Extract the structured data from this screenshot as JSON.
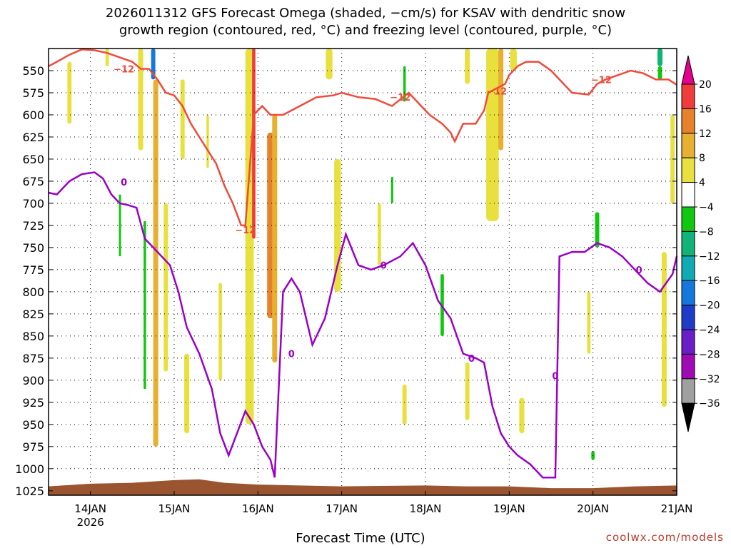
{
  "header": {
    "title_line1": "2026011312 GFS Forecast Omega (shaded, −cm/s) for KSAV with dendritic snow",
    "title_line2": "growth region (contoured, red, °C) and freezing level (contoured, purple, °C)"
  },
  "footer": {
    "xlabel": "Forecast Time (UTC)",
    "credit": "coolwx.com/models"
  },
  "colors": {
    "dgz_contour": "#f04a3a",
    "freezing_contour": "#9a00c8",
    "terrain": "#9a5530"
  },
  "chart_data": {
    "type": "heatmap",
    "y_ticks": [
      "550",
      "575",
      "600",
      "625",
      "650",
      "675",
      "700",
      "725",
      "750",
      "775",
      "800",
      "825",
      "850",
      "875",
      "900",
      "925",
      "950",
      "975",
      "1000",
      "1025"
    ],
    "y_range_hpa": [
      525,
      1030
    ],
    "x_ticks": [
      {
        "label": "14JAN",
        "sub": "2026",
        "day": 14
      },
      {
        "label": "15JAN",
        "sub": "",
        "day": 15
      },
      {
        "label": "16JAN",
        "sub": "",
        "day": 16
      },
      {
        "label": "17JAN",
        "sub": "",
        "day": 17
      },
      {
        "label": "18JAN",
        "sub": "",
        "day": 18
      },
      {
        "label": "19JAN",
        "sub": "",
        "day": 19
      },
      {
        "label": "20JAN",
        "sub": "",
        "day": 20
      },
      {
        "label": "21JAN",
        "sub": "",
        "day": 21
      }
    ],
    "x_range_day": [
      13.5,
      21.0
    ],
    "colorbar": {
      "labels": [
        "20",
        "16",
        "12",
        "8",
        "4",
        "−4",
        "−8",
        "−12",
        "−16",
        "−20",
        "−24",
        "−28",
        "−32",
        "−36"
      ],
      "colors": [
        "#e4008c",
        "#f03c3c",
        "#e8822a",
        "#e8b030",
        "#e8e03c",
        "#ffffff",
        "#10c810",
        "#10b478",
        "#10aab4",
        "#1478dc",
        "#1e3cc8",
        "#6a1ec8",
        "#a00ab4",
        "#a0a0a0",
        "#000000"
      ]
    },
    "contour_labels": {
      "dgz": "−12",
      "freezing": "0"
    },
    "dgz_line": [
      [
        13.5,
        545
      ],
      [
        13.6,
        540
      ],
      [
        13.75,
        532
      ],
      [
        13.9,
        526
      ],
      [
        14.05,
        527
      ],
      [
        14.2,
        530
      ],
      [
        14.35,
        535
      ],
      [
        14.5,
        540
      ],
      [
        14.6,
        548
      ],
      [
        14.7,
        548
      ],
      [
        14.8,
        560
      ],
      [
        14.9,
        575
      ],
      [
        15.0,
        578
      ],
      [
        15.1,
        590
      ],
      [
        15.2,
        610
      ],
      [
        15.3,
        625
      ],
      [
        15.4,
        640
      ],
      [
        15.5,
        655
      ],
      [
        15.6,
        680
      ],
      [
        15.7,
        700
      ],
      [
        15.8,
        725
      ],
      [
        15.85,
        725
      ],
      [
        15.95,
        600
      ],
      [
        16.05,
        590
      ],
      [
        16.15,
        600
      ],
      [
        16.3,
        600
      ],
      [
        16.5,
        590
      ],
      [
        16.7,
        580
      ],
      [
        16.9,
        578
      ],
      [
        17.0,
        575
      ],
      [
        17.2,
        580
      ],
      [
        17.4,
        582
      ],
      [
        17.6,
        590
      ],
      [
        17.8,
        575
      ],
      [
        17.95,
        590
      ],
      [
        18.05,
        600
      ],
      [
        18.2,
        610
      ],
      [
        18.3,
        620
      ],
      [
        18.35,
        630
      ],
      [
        18.45,
        610
      ],
      [
        18.6,
        610
      ],
      [
        18.7,
        595
      ],
      [
        18.75,
        575
      ],
      [
        18.85,
        570
      ],
      [
        18.95,
        565
      ],
      [
        19.0,
        555
      ],
      [
        19.1,
        545
      ],
      [
        19.2,
        540
      ],
      [
        19.35,
        540
      ],
      [
        19.5,
        550
      ],
      [
        19.6,
        560
      ],
      [
        19.75,
        575
      ],
      [
        19.95,
        577
      ],
      [
        20.05,
        565
      ],
      [
        20.15,
        560
      ],
      [
        20.3,
        555
      ],
      [
        20.45,
        550
      ],
      [
        20.6,
        553
      ],
      [
        20.75,
        560
      ],
      [
        20.9,
        560
      ],
      [
        21.0,
        566
      ]
    ],
    "freezing_line": [
      [
        13.5,
        688
      ],
      [
        13.6,
        690
      ],
      [
        13.75,
        675
      ],
      [
        13.9,
        667
      ],
      [
        14.05,
        665
      ],
      [
        14.15,
        672
      ],
      [
        14.25,
        690
      ],
      [
        14.35,
        700
      ],
      [
        14.45,
        702
      ],
      [
        14.55,
        705
      ],
      [
        14.65,
        740
      ],
      [
        14.75,
        750
      ],
      [
        14.85,
        760
      ],
      [
        14.95,
        770
      ],
      [
        15.05,
        800
      ],
      [
        15.15,
        840
      ],
      [
        15.3,
        870
      ],
      [
        15.45,
        910
      ],
      [
        15.55,
        960
      ],
      [
        15.65,
        985
      ],
      [
        15.75,
        960
      ],
      [
        15.85,
        935
      ],
      [
        15.95,
        950
      ],
      [
        16.05,
        975
      ],
      [
        16.15,
        990
      ],
      [
        16.2,
        1010
      ],
      [
        16.3,
        800
      ],
      [
        16.4,
        785
      ],
      [
        16.5,
        800
      ],
      [
        16.65,
        860
      ],
      [
        16.8,
        830
      ],
      [
        16.95,
        770
      ],
      [
        17.05,
        735
      ],
      [
        17.2,
        770
      ],
      [
        17.35,
        775
      ],
      [
        17.5,
        770
      ],
      [
        17.7,
        760
      ],
      [
        17.85,
        745
      ],
      [
        18.0,
        770
      ],
      [
        18.15,
        810
      ],
      [
        18.3,
        830
      ],
      [
        18.45,
        870
      ],
      [
        18.6,
        875
      ],
      [
        18.7,
        880
      ],
      [
        18.8,
        930
      ],
      [
        18.9,
        960
      ],
      [
        19.0,
        975
      ],
      [
        19.1,
        985
      ],
      [
        19.25,
        995
      ],
      [
        19.4,
        1010
      ],
      [
        19.55,
        1010
      ],
      [
        19.6,
        760
      ],
      [
        19.75,
        755
      ],
      [
        19.9,
        755
      ],
      [
        20.05,
        745
      ],
      [
        20.2,
        750
      ],
      [
        20.35,
        760
      ],
      [
        20.5,
        775
      ],
      [
        20.65,
        790
      ],
      [
        20.8,
        800
      ],
      [
        20.95,
        780
      ],
      [
        21.0,
        760
      ]
    ],
    "omega_patches": [
      {
        "x": 13.75,
        "top": 540,
        "bot": 610,
        "w": 0.05,
        "color": "#e8e03c"
      },
      {
        "x": 14.2,
        "top": 525,
        "bot": 545,
        "w": 0.04,
        "color": "#e8e03c"
      },
      {
        "x": 14.35,
        "top": 690,
        "bot": 760,
        "w": 0.02,
        "color": "#10c810"
      },
      {
        "x": 14.6,
        "top": 525,
        "bot": 640,
        "w": 0.06,
        "color": "#e8e03c"
      },
      {
        "x": 14.65,
        "top": 720,
        "bot": 910,
        "w": 0.03,
        "color": "#10c810"
      },
      {
        "x": 14.75,
        "top": 525,
        "bot": 560,
        "w": 0.05,
        "color": "#1478dc"
      },
      {
        "x": 14.78,
        "top": 560,
        "bot": 975,
        "w": 0.06,
        "color": "#e8b030"
      },
      {
        "x": 14.9,
        "top": 700,
        "bot": 890,
        "w": 0.05,
        "color": "#e8e03c"
      },
      {
        "x": 15.1,
        "top": 560,
        "bot": 650,
        "w": 0.05,
        "color": "#e8e03c"
      },
      {
        "x": 15.15,
        "top": 870,
        "bot": 960,
        "w": 0.06,
        "color": "#e8e03c"
      },
      {
        "x": 15.4,
        "top": 600,
        "bot": 660,
        "w": 0.03,
        "color": "#e8e03c"
      },
      {
        "x": 15.55,
        "top": 790,
        "bot": 900,
        "w": 0.04,
        "color": "#e8e03c"
      },
      {
        "x": 15.9,
        "top": 525,
        "bot": 950,
        "w": 0.1,
        "color": "#e8e03c"
      },
      {
        "x": 15.95,
        "top": 525,
        "bot": 740,
        "w": 0.04,
        "color": "#f03c3c"
      },
      {
        "x": 16.15,
        "top": 620,
        "bot": 830,
        "w": 0.08,
        "color": "#e8822a"
      },
      {
        "x": 16.2,
        "top": 600,
        "bot": 880,
        "w": 0.06,
        "color": "#e8b030"
      },
      {
        "x": 16.85,
        "top": 525,
        "bot": 560,
        "w": 0.08,
        "color": "#e8e03c"
      },
      {
        "x": 16.95,
        "top": 650,
        "bot": 800,
        "w": 0.08,
        "color": "#e8e03c"
      },
      {
        "x": 17.45,
        "top": 700,
        "bot": 770,
        "w": 0.04,
        "color": "#e8e03c"
      },
      {
        "x": 17.6,
        "top": 670,
        "bot": 700,
        "w": 0.02,
        "color": "#10c810"
      },
      {
        "x": 17.75,
        "top": 545,
        "bot": 585,
        "w": 0.03,
        "color": "#10c810"
      },
      {
        "x": 17.75,
        "top": 905,
        "bot": 950,
        "w": 0.05,
        "color": "#e8e03c"
      },
      {
        "x": 18.2,
        "top": 780,
        "bot": 850,
        "w": 0.04,
        "color": "#10c810"
      },
      {
        "x": 18.5,
        "top": 525,
        "bot": 565,
        "w": 0.06,
        "color": "#e8e03c"
      },
      {
        "x": 18.5,
        "top": 880,
        "bot": 945,
        "w": 0.05,
        "color": "#e8e03c"
      },
      {
        "x": 18.8,
        "top": 525,
        "bot": 720,
        "w": 0.15,
        "color": "#e8e03c"
      },
      {
        "x": 18.9,
        "top": 525,
        "bot": 640,
        "w": 0.06,
        "color": "#e8b030"
      },
      {
        "x": 19.05,
        "top": 525,
        "bot": 550,
        "w": 0.08,
        "color": "#e8e03c"
      },
      {
        "x": 19.15,
        "top": 920,
        "bot": 960,
        "w": 0.06,
        "color": "#e8e03c"
      },
      {
        "x": 20.05,
        "top": 710,
        "bot": 750,
        "w": 0.05,
        "color": "#10c810"
      },
      {
        "x": 19.95,
        "top": 800,
        "bot": 870,
        "w": 0.04,
        "color": "#e8e03c"
      },
      {
        "x": 20.0,
        "top": 980,
        "bot": 990,
        "w": 0.04,
        "color": "#10c810"
      },
      {
        "x": 20.8,
        "top": 525,
        "bot": 545,
        "w": 0.06,
        "color": "#10b478"
      },
      {
        "x": 20.8,
        "top": 545,
        "bot": 560,
        "w": 0.05,
        "color": "#10c810"
      },
      {
        "x": 20.95,
        "top": 600,
        "bot": 700,
        "w": 0.05,
        "color": "#e8e03c"
      },
      {
        "x": 20.85,
        "top": 755,
        "bot": 930,
        "w": 0.06,
        "color": "#e8e03c"
      }
    ],
    "terrain_profile": [
      [
        13.5,
        1020
      ],
      [
        14.0,
        1017
      ],
      [
        14.5,
        1016
      ],
      [
        15.0,
        1013
      ],
      [
        15.3,
        1012
      ],
      [
        15.6,
        1016
      ],
      [
        16.0,
        1018
      ],
      [
        16.5,
        1019
      ],
      [
        17.0,
        1020
      ],
      [
        18.0,
        1019
      ],
      [
        18.5,
        1020
      ],
      [
        19.0,
        1020
      ],
      [
        19.5,
        1022
      ],
      [
        20.0,
        1022
      ],
      [
        20.5,
        1020
      ],
      [
        21.0,
        1019
      ]
    ]
  }
}
